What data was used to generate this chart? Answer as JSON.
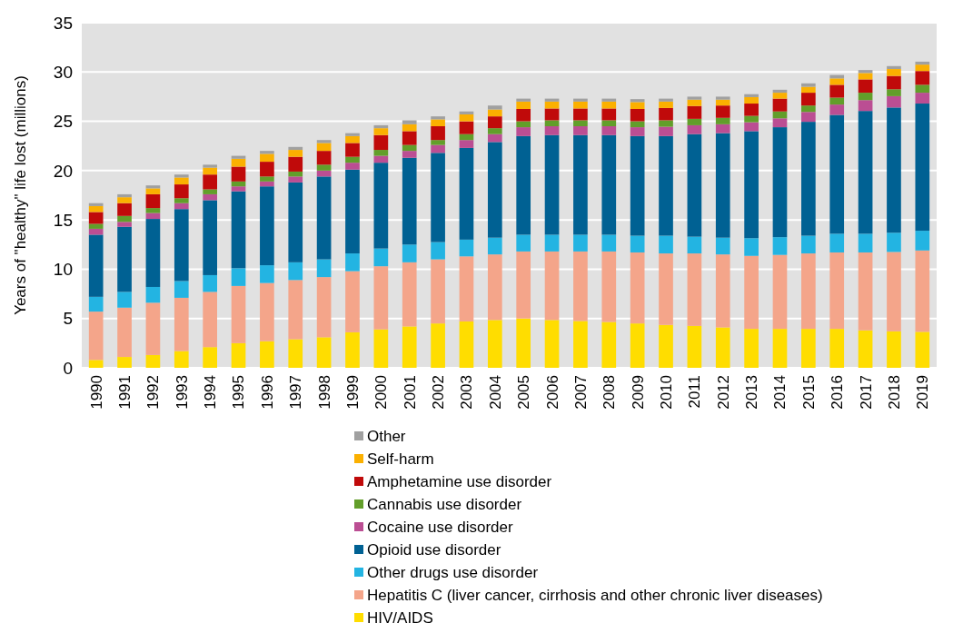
{
  "chart_data": {
    "type": "bar",
    "stacked": true,
    "ylabel": "Years of \"healthy\" life lost (millions)",
    "categories": [
      "1990",
      "1991",
      "1992",
      "1993",
      "1994",
      "1995",
      "1996",
      "1997",
      "1998",
      "1999",
      "2000",
      "2001",
      "2002",
      "2003",
      "2004",
      "2005",
      "2006",
      "2007",
      "2008",
      "2009",
      "2010",
      "2011",
      "2012",
      "2013",
      "2014",
      "2015",
      "2016",
      "2017",
      "2018",
      "2019"
    ],
    "ylim": [
      0,
      35
    ],
    "yticks": [
      0,
      5,
      10,
      15,
      20,
      25,
      30,
      35
    ],
    "grid": "y",
    "legend": "bottom",
    "series": [
      {
        "name": "HIV/AIDS",
        "color": "#ffdd00",
        "values": [
          0.8,
          1.1,
          1.3,
          1.7,
          2.1,
          2.5,
          2.7,
          2.9,
          3.1,
          3.6,
          3.9,
          4.2,
          4.5,
          4.7,
          4.85,
          5.0,
          4.85,
          4.75,
          4.65,
          4.5,
          4.35,
          4.25,
          4.1,
          3.95,
          3.95,
          3.95,
          3.95,
          3.8,
          3.7,
          3.65
        ]
      },
      {
        "name": "Hepatitis C (liver cancer, cirrhosis and other chronic liver diseases)",
        "color": "#f4a58a",
        "values": [
          4.9,
          5.0,
          5.3,
          5.4,
          5.6,
          5.8,
          5.9,
          6.0,
          6.1,
          6.2,
          6.4,
          6.5,
          6.5,
          6.6,
          6.65,
          6.8,
          6.95,
          7.05,
          7.15,
          7.2,
          7.25,
          7.35,
          7.4,
          7.4,
          7.5,
          7.65,
          7.75,
          7.9,
          8.05,
          8.25
        ]
      },
      {
        "name": "Other drugs use disorder",
        "color": "#23b4e2",
        "values": [
          1.5,
          1.6,
          1.6,
          1.7,
          1.7,
          1.8,
          1.8,
          1.8,
          1.8,
          1.8,
          1.8,
          1.8,
          1.75,
          1.7,
          1.7,
          1.7,
          1.7,
          1.7,
          1.7,
          1.7,
          1.8,
          1.7,
          1.7,
          1.8,
          1.8,
          1.8,
          1.9,
          1.9,
          1.95,
          2.0
        ]
      },
      {
        "name": "Opioid use disorder",
        "color": "#006193",
        "values": [
          6.3,
          6.6,
          6.9,
          7.3,
          7.6,
          7.8,
          8.0,
          8.1,
          8.4,
          8.5,
          8.7,
          8.8,
          9.05,
          9.3,
          9.7,
          10.0,
          10.1,
          10.1,
          10.1,
          10.1,
          10.1,
          10.4,
          10.6,
          10.85,
          11.15,
          11.55,
          12.05,
          12.45,
          12.7,
          12.9
        ]
      },
      {
        "name": "Cocaine use disorder",
        "color": "#bb4e93",
        "values": [
          0.6,
          0.5,
          0.6,
          0.6,
          0.6,
          0.5,
          0.5,
          0.6,
          0.6,
          0.7,
          0.7,
          0.7,
          0.8,
          0.8,
          0.8,
          0.9,
          0.9,
          0.9,
          0.9,
          0.9,
          0.95,
          0.9,
          0.9,
          0.9,
          0.9,
          1.0,
          1.05,
          1.1,
          1.15,
          1.1
        ]
      },
      {
        "name": "Cannabis use disorder",
        "color": "#629e2a",
        "values": [
          0.5,
          0.6,
          0.5,
          0.5,
          0.5,
          0.5,
          0.5,
          0.5,
          0.6,
          0.6,
          0.6,
          0.6,
          0.5,
          0.6,
          0.6,
          0.6,
          0.6,
          0.6,
          0.6,
          0.6,
          0.65,
          0.65,
          0.65,
          0.65,
          0.7,
          0.65,
          0.7,
          0.75,
          0.7,
          0.8
        ]
      },
      {
        "name": "Amphetamine use disorder",
        "color": "#c00a0a",
        "values": [
          1.2,
          1.3,
          1.4,
          1.4,
          1.5,
          1.5,
          1.5,
          1.5,
          1.4,
          1.4,
          1.5,
          1.4,
          1.4,
          1.3,
          1.2,
          1.25,
          1.2,
          1.2,
          1.2,
          1.25,
          1.25,
          1.3,
          1.25,
          1.25,
          1.3,
          1.3,
          1.3,
          1.35,
          1.35,
          1.4
        ]
      },
      {
        "name": "Self-harm",
        "color": "#fbb000",
        "values": [
          0.6,
          0.6,
          0.6,
          0.7,
          0.7,
          0.8,
          0.8,
          0.7,
          0.8,
          0.7,
          0.7,
          0.7,
          0.7,
          0.7,
          0.7,
          0.75,
          0.7,
          0.7,
          0.7,
          0.7,
          0.65,
          0.65,
          0.6,
          0.65,
          0.6,
          0.6,
          0.65,
          0.65,
          0.7,
          0.65
        ]
      },
      {
        "name": "Other",
        "color": "#a0a0a0",
        "values": [
          0.3,
          0.3,
          0.3,
          0.3,
          0.3,
          0.3,
          0.3,
          0.3,
          0.3,
          0.3,
          0.3,
          0.4,
          0.3,
          0.3,
          0.4,
          0.3,
          0.3,
          0.3,
          0.3,
          0.3,
          0.3,
          0.3,
          0.3,
          0.3,
          0.3,
          0.35,
          0.35,
          0.3,
          0.3,
          0.3
        ]
      }
    ]
  }
}
